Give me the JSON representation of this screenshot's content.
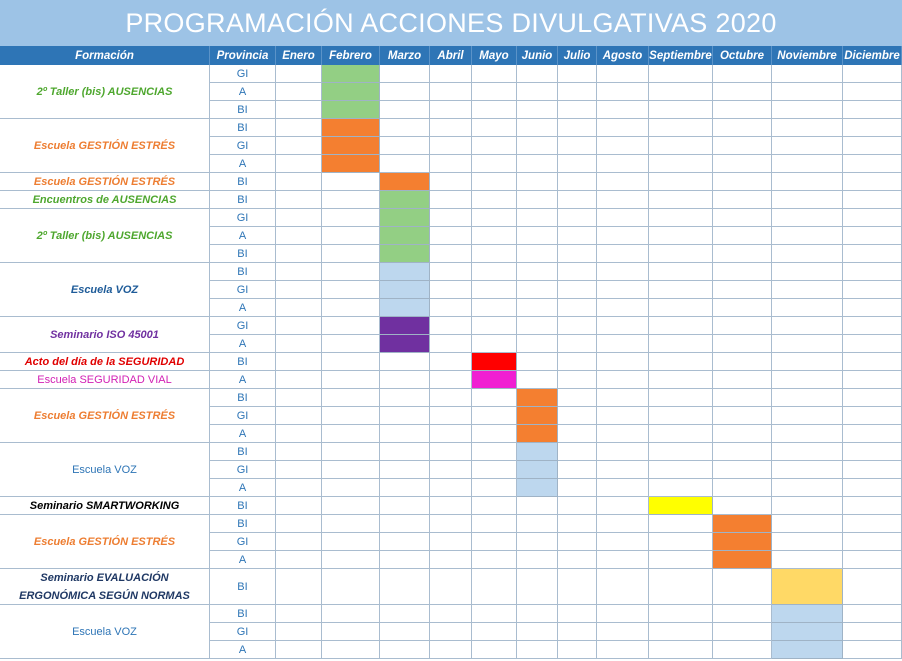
{
  "title": "PROGRAMACIÓN ACCIONES DIVULGATIVAS 2020",
  "header": [
    "Formación",
    "Provincia",
    "Enero",
    "Febrero",
    "Marzo",
    "Abril",
    "Mayo",
    "Junio",
    "Julio",
    "Agosto",
    "Septiembre",
    "Octubre",
    "Noviembre",
    "Diciembre"
  ],
  "groups": [
    {
      "label": "2º Taller  (bis) AUSENCIAS",
      "label_color": "#4ea72e",
      "bold": true,
      "italic": true,
      "month": "Febrero",
      "color": "#93cf84",
      "provinces": [
        "GI",
        "A",
        "BI"
      ]
    },
    {
      "label": "Escuela GESTIÓN ESTRÉS",
      "label_color": "#ed7d31",
      "bold": true,
      "italic": true,
      "month": "Febrero",
      "color": "#f47f30",
      "provinces": [
        "BI",
        "GI",
        "A"
      ]
    },
    {
      "label": "Escuela GESTIÓN ESTRÉS",
      "label_color": "#ed7d31",
      "bold": true,
      "italic": true,
      "month": "Marzo",
      "color": "#f47f30",
      "provinces": [
        "BI"
      ]
    },
    {
      "label": "Encuentros de AUSENCIAS",
      "label_color": "#4ea72e",
      "bold": true,
      "italic": true,
      "month": "Marzo",
      "color": "#93cf84",
      "provinces": [
        "BI"
      ]
    },
    {
      "label": "2º Taller  (bis) AUSENCIAS",
      "label_color": "#4ea72e",
      "bold": true,
      "italic": true,
      "month": "Marzo",
      "color": "#93cf84",
      "provinces": [
        "GI",
        "A",
        "BI"
      ]
    },
    {
      "label": "Escuela VOZ",
      "label_color": "#1f5c99",
      "bold": true,
      "italic": true,
      "month": "Marzo",
      "color": "#bdd7ee",
      "provinces": [
        "BI",
        "GI",
        "A"
      ]
    },
    {
      "label": "Seminario  ISO 45001",
      "label_color": "#7030a0",
      "bold": true,
      "italic": true,
      "month": "Marzo",
      "color": "#7030a0",
      "provinces": [
        "GI",
        "A"
      ]
    },
    {
      "label": "Acto del día de la SEGURIDAD",
      "label_color": "#e00000",
      "bold": true,
      "italic": true,
      "month": "Mayo",
      "color": "#ff0000",
      "provinces": [
        "BI"
      ]
    },
    {
      "label": "Escuela SEGURIDAD VIAL",
      "label_color": "#d21fb4",
      "bold": false,
      "italic": false,
      "month": "Mayo",
      "color": "#f01fd2",
      "provinces": [
        "A"
      ]
    },
    {
      "label": "Escuela GESTIÓN ESTRÉS",
      "label_color": "#ed7d31",
      "bold": true,
      "italic": true,
      "month": "Junio",
      "color": "#f47f30",
      "provinces": [
        "BI",
        "GI",
        "A"
      ]
    },
    {
      "label": "Escuela VOZ",
      "label_color": "#2e75b6",
      "bold": false,
      "italic": false,
      "month": "Junio",
      "color": "#bdd7ee",
      "provinces": [
        "BI",
        "GI",
        "A"
      ]
    },
    {
      "label": "Seminario SMARTWORKING",
      "label_color": "#000000",
      "bold": true,
      "italic": true,
      "month": "Septiembre",
      "color": "#ffff00",
      "provinces": [
        "BI"
      ]
    },
    {
      "label": "Escuela GESTIÓN ESTRÉS",
      "label_color": "#ed7d31",
      "bold": true,
      "italic": true,
      "month": "Octubre",
      "color": "#f47f30",
      "provinces": [
        "BI",
        "GI",
        "A"
      ]
    },
    {
      "label": "Seminario EVALUACIÓN\nERGONÓMICA SEGÚN NORMAS",
      "label_color": "#1f3864",
      "bold": true,
      "italic": true,
      "month": "Noviembre",
      "color": "#ffd966",
      "provinces": [
        "BI"
      ]
    },
    {
      "label": "Escuela VOZ",
      "label_color": "#2e75b6",
      "bold": false,
      "italic": false,
      "month": "Noviembre",
      "color": "#bdd7ee",
      "provinces": [
        "BI",
        "GI",
        "A"
      ]
    }
  ]
}
